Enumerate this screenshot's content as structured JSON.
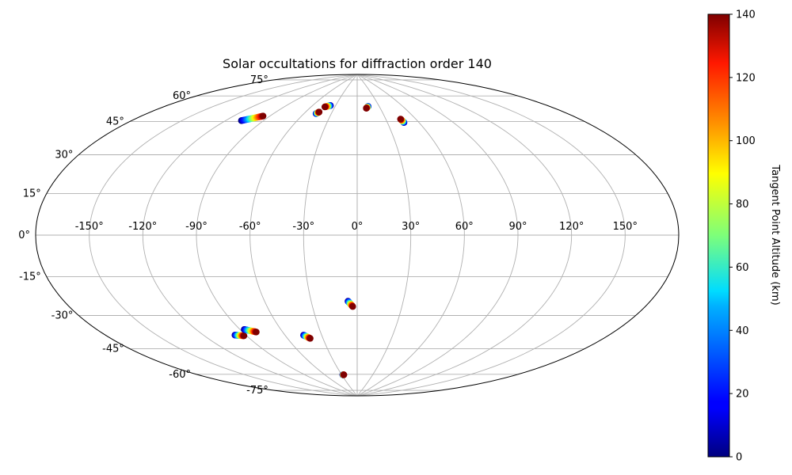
{
  "chart_data": {
    "type": "scatter",
    "projection": "aitoff",
    "title": "Solar occultations for diffraction order 140",
    "lon_ticks": [
      -150,
      -120,
      -90,
      -60,
      -30,
      0,
      30,
      60,
      90,
      120,
      150
    ],
    "lon_tick_labels": [
      "-150°",
      "-120°",
      "-90°",
      "-60°",
      "-30°",
      "0°",
      "30°",
      "60°",
      "90°",
      "120°",
      "150°"
    ],
    "lat_ticks": [
      -75,
      -60,
      -45,
      -30,
      -15,
      0,
      15,
      30,
      45,
      60,
      75
    ],
    "lat_tick_labels": [
      "-75°",
      "-60°",
      "-45°",
      "-30°",
      "-15°",
      "0°",
      "15°",
      "30°",
      "45°",
      "60°",
      "75°"
    ],
    "grid": true,
    "colormap": "jet",
    "colorbar": {
      "label": "Tangent Point Altitude (km)",
      "min": 0,
      "max": 140,
      "ticks": [
        0,
        20,
        40,
        60,
        80,
        100,
        120,
        140
      ],
      "tick_labels": [
        "0",
        "20",
        "40",
        "60",
        "80",
        "100",
        "120",
        "140"
      ]
    },
    "occultations": [
      {
        "lon_start": -108,
        "lat_start": 58,
        "lon_end": -96,
        "lat_end": 62
      },
      {
        "lon_start": -37,
        "lat_start": 72,
        "lon_end": -43,
        "lat_end": 71
      },
      {
        "lon_start": -47,
        "lat_start": 67,
        "lon_end": -45,
        "lat_end": 68
      },
      {
        "lon_start": 15,
        "lat_start": 72,
        "lon_end": 12,
        "lat_end": 71
      },
      {
        "lon_start": 46,
        "lat_start": 62,
        "lon_end": 45,
        "lat_end": 64
      },
      {
        "lon_start": -98,
        "lat_start": -51,
        "lon_end": -92,
        "lat_end": -52
      },
      {
        "lon_start": -87,
        "lat_start": -49,
        "lon_end": -80,
        "lat_end": -51
      },
      {
        "lon_start": -45,
        "lat_start": -55,
        "lon_end": -41,
        "lat_end": -57
      },
      {
        "lon_start": -6,
        "lat_start": -37,
        "lon_end": -3,
        "lat_end": -40
      },
      {
        "lon_start": -28,
        "lat_start": -78,
        "lon_end": -26,
        "lat_end": -78
      }
    ]
  }
}
